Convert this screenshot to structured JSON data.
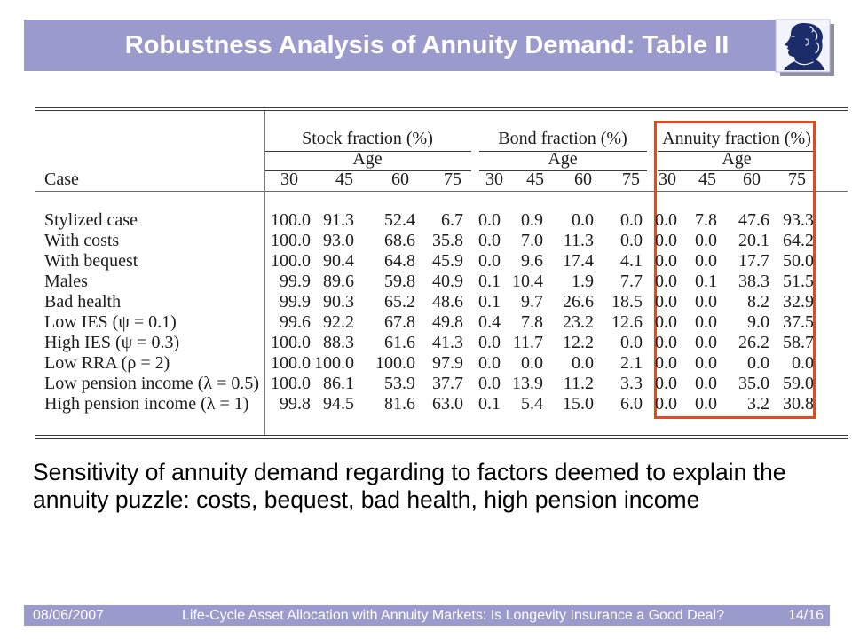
{
  "slide": {
    "title": "Robustness Analysis of Annuity Demand: Table II",
    "caption": "Sensitivity of annuity demand regarding to factors deemed to explain the annuity puzzle: costs, bequest, bad health, high pension income",
    "logo_icon": "goethe-profile-icon"
  },
  "table": {
    "case_header": "Case",
    "groups": [
      {
        "label": "Stock fraction (%)",
        "sublabel": "Age",
        "ages": [
          "30",
          "45",
          "60",
          "75"
        ],
        "highlighted": false
      },
      {
        "label": "Bond fraction (%)",
        "sublabel": "Age",
        "ages": [
          "30",
          "45",
          "60",
          "75"
        ],
        "highlighted": false
      },
      {
        "label": "Annuity fraction (%)",
        "sublabel": "Age",
        "ages": [
          "30",
          "45",
          "60",
          "75"
        ],
        "highlighted": true
      }
    ],
    "rows": [
      {
        "case": "Stylized case",
        "values": [
          "100.0",
          "91.3",
          "52.4",
          "6.7",
          "0.0",
          "0.9",
          "0.0",
          "0.0",
          "0.0",
          "7.8",
          "47.6",
          "93.3"
        ]
      },
      {
        "case": "With costs",
        "values": [
          "100.0",
          "93.0",
          "68.6",
          "35.8",
          "0.0",
          "7.0",
          "11.3",
          "0.0",
          "0.0",
          "0.0",
          "20.1",
          "64.2"
        ]
      },
      {
        "case": "With bequest",
        "values": [
          "100.0",
          "90.4",
          "64.8",
          "45.9",
          "0.0",
          "9.6",
          "17.4",
          "4.1",
          "0.0",
          "0.0",
          "17.7",
          "50.0"
        ]
      },
      {
        "case": "Males",
        "values": [
          "99.9",
          "89.6",
          "59.8",
          "40.9",
          "0.1",
          "10.4",
          "1.9",
          "7.7",
          "0.0",
          "0.1",
          "38.3",
          "51.5"
        ]
      },
      {
        "case": "Bad health",
        "values": [
          "99.9",
          "90.3",
          "65.2",
          "48.6",
          "0.1",
          "9.7",
          "26.6",
          "18.5",
          "0.0",
          "0.0",
          "8.2",
          "32.9"
        ]
      },
      {
        "case": "Low IES (ψ = 0.1)",
        "values": [
          "99.6",
          "92.2",
          "67.8",
          "49.8",
          "0.4",
          "7.8",
          "23.2",
          "12.6",
          "0.0",
          "0.0",
          "9.0",
          "37.5"
        ]
      },
      {
        "case": "High IES (ψ = 0.3)",
        "values": [
          "100.0",
          "88.3",
          "61.6",
          "41.3",
          "0.0",
          "11.7",
          "12.2",
          "0.0",
          "0.0",
          "0.0",
          "26.2",
          "58.7"
        ]
      },
      {
        "case": "Low RRA (ρ = 2)",
        "values": [
          "100.0",
          "100.0",
          "100.0",
          "97.9",
          "0.0",
          "0.0",
          "0.0",
          "2.1",
          "0.0",
          "0.0",
          "0.0",
          "0.0"
        ]
      },
      {
        "case": "Low pension income (λ = 0.5)",
        "values": [
          "100.0",
          "86.1",
          "53.9",
          "37.7",
          "0.0",
          "13.9",
          "11.2",
          "3.3",
          "0.0",
          "0.0",
          "35.0",
          "59.0"
        ]
      },
      {
        "case": "High pension income (λ = 1)",
        "values": [
          "99.8",
          "94.5",
          "81.6",
          "63.0",
          "0.1",
          "5.4",
          "15.0",
          "6.0",
          "0.0",
          "0.0",
          "3.2",
          "30.8"
        ]
      }
    ]
  },
  "footer": {
    "date": "08/06/2007",
    "presentation_title": "Life-Cycle Asset Allocation with Annuity Markets: Is Longevity Insurance a Good Deal?",
    "page": "14/16"
  },
  "colors": {
    "bar": "#9a9acd",
    "bar_text": "#ffffff",
    "highlight": "#e34a1e",
    "logo": "#1b2c6b"
  }
}
